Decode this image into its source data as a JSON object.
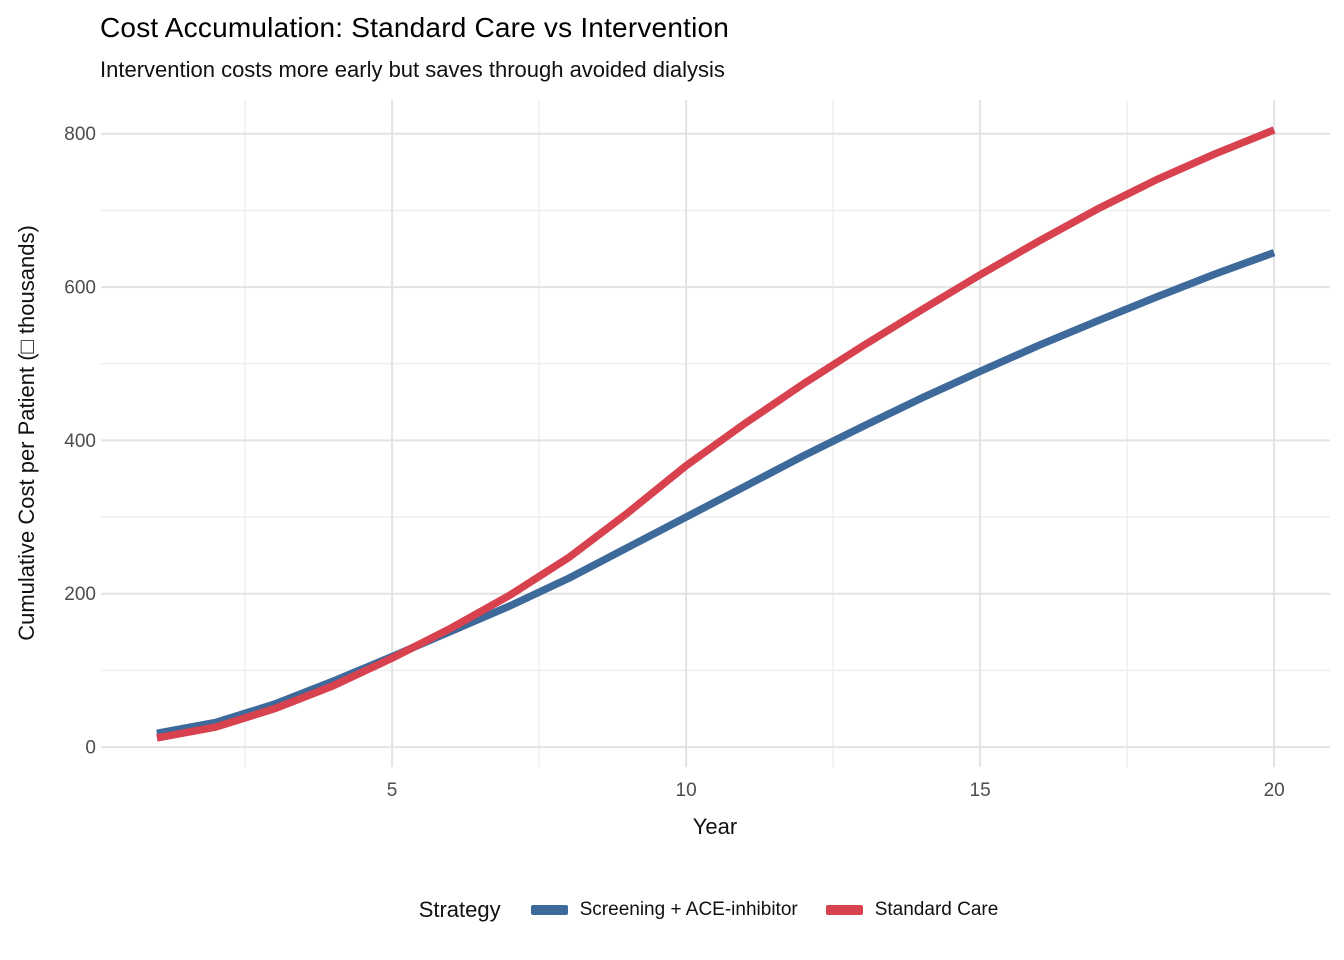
{
  "header": {
    "title": "Cost Accumulation: Standard Care vs Intervention",
    "subtitle": "Intervention costs more early but saves through avoided dialysis"
  },
  "chart_data": {
    "type": "line",
    "title": "Cost Accumulation: Standard Care vs Intervention",
    "subtitle": "Intervention costs more early but saves through avoided dialysis",
    "xlabel": "Year",
    "ylabel": "Cumulative Cost per Patient (□ thousands)",
    "x": [
      1,
      2,
      3,
      4,
      5,
      6,
      7,
      8,
      9,
      10,
      11,
      12,
      13,
      14,
      15,
      16,
      17,
      18,
      19,
      20
    ],
    "series": [
      {
        "name": "Screening + ACE-inhibitor",
        "color": "#3D6A9B",
        "values": [
          18,
          32,
          56,
          86,
          118,
          151,
          184,
          220,
          260,
          300,
          340,
          380,
          418,
          455,
          490,
          524,
          556,
          587,
          617,
          645
        ]
      },
      {
        "name": "Standard Care",
        "color": "#D8424F",
        "values": [
          12,
          26,
          50,
          80,
          116,
          155,
          198,
          247,
          305,
          367,
          422,
          474,
          523,
          570,
          616,
          660,
          702,
          740,
          774,
          805
        ]
      }
    ],
    "x_ticks": [
      5,
      10,
      15,
      20
    ],
    "y_ticks": [
      0,
      200,
      400,
      600,
      800
    ],
    "xlim": [
      0.05,
      20.95
    ],
    "ylim": [
      -26,
      844
    ],
    "grid": "major+minor horizontal+vertical, light gray on white",
    "legend": {
      "title": "Strategy",
      "position": "bottom"
    },
    "colors": {
      "grid_major": "#E3E3E3",
      "grid_minor": "#EDEDED",
      "tick_label": "#4D4D4D",
      "background": "#FFFFFF"
    }
  }
}
